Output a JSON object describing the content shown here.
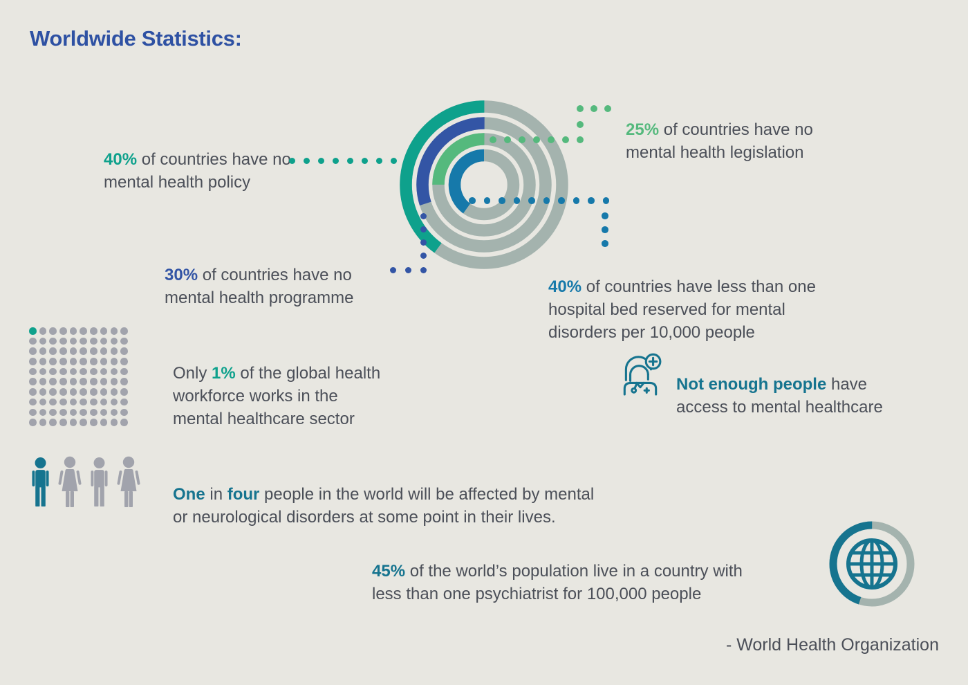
{
  "palette": {
    "bg": "#e8e7e1",
    "title": "#2e51a3",
    "text": "#4b4f58",
    "teal": "#0ea18c",
    "green": "#55b97d",
    "royal": "#3355a5",
    "ocean": "#1679aa",
    "darkteal": "#16748f",
    "ringgray": "#a4b3ae",
    "dotgray": "#a1a3ac"
  },
  "title": "Worldwide Statistics:",
  "chart_data": {
    "type": "donut-rings",
    "unit": "percent of countries",
    "fill_direction": "counterclockwise from 12 o'clock",
    "track_color": "#a4b3ae",
    "thickness": 17.5,
    "rings": [
      {
        "label": "no mental health policy",
        "value": 40,
        "color": "#0ea18c",
        "radius": 113
      },
      {
        "label": "no mental health programme",
        "value": 30,
        "color": "#3355a5",
        "radius": 89
      },
      {
        "label": "no mental health legislation",
        "value": 25,
        "color": "#55b97d",
        "radius": 66
      },
      {
        "label": "less than one hospital bed reserved for mental disorders per 10,000 people",
        "value": 40,
        "color": "#1679aa",
        "radius": 42.5
      }
    ],
    "annotations": [
      {
        "value": "40%",
        "text": "of countries have no mental health policy"
      },
      {
        "value": "25%",
        "text": "of countries have no mental health legislation"
      },
      {
        "value": "30%",
        "text": "of countries have no mental health programme"
      },
      {
        "value": "40%",
        "text": "of countries have less than one hospital bed reserved for mental disorders per 10,000 people"
      }
    ]
  },
  "stats": {
    "policy": {
      "pct": "40%",
      "rest": " of countries have no\nmental health policy"
    },
    "legislation": {
      "pct": "25%",
      "rest": " of countries have no\nmental health legislation"
    },
    "programme": {
      "pct": "30%",
      "rest": " of countries have no\nmental health programme"
    },
    "beds": {
      "pct": "40%",
      "rest": " of countries have less than one\nhospital bed reserved for mental\ndisorders per 10,000 people"
    },
    "workforce": {
      "prefix": "Only ",
      "pct": "1%",
      "rest": " of the global health\nworkforce works in the\nmental healthcare sector"
    },
    "access": {
      "bold": "Not enough people",
      "rest": " have\naccess to mental healthcare"
    },
    "one_in_four": {
      "bold1": "One",
      "mid": " in ",
      "bold2": "four",
      "rest": " people in the world will be affected by mental\nor neurological disorders at some point in their lives."
    },
    "psychiatrist": {
      "pct": "45%",
      "rest": " of the world’s population live in a country with\nless than one psychiatrist for 100,000 people"
    }
  },
  "dot_grid": {
    "rows": 10,
    "cols": 10,
    "total": 100,
    "highlighted": 1
  },
  "people_row": {
    "icons": [
      "male",
      "female",
      "male",
      "female"
    ],
    "highlighted": 1
  },
  "globe": {
    "value": 45
  },
  "attribution": "- World Health Organization"
}
